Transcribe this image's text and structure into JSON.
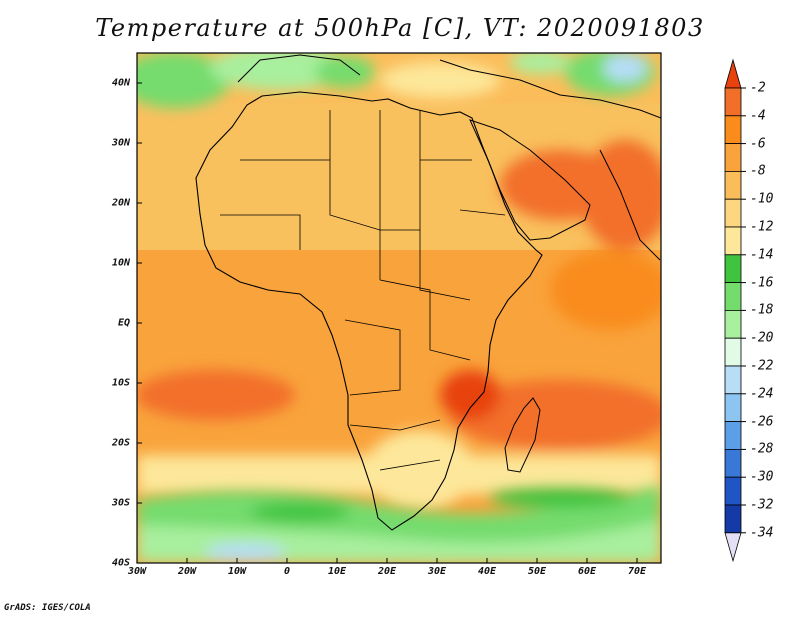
{
  "title": "Temperature at 500hPa [C], VT: 2020091803",
  "credit": "GrADS: IGES/COLA",
  "map": {
    "lat_labels": [
      "40N",
      "30N",
      "20N",
      "10N",
      "EQ",
      "10S",
      "20S",
      "30S",
      "40S"
    ],
    "lon_labels": [
      "30W",
      "20W",
      "10W",
      "0",
      "10E",
      "20E",
      "30E",
      "40E",
      "50E",
      "60E",
      "70E"
    ],
    "fill_colors": {
      "ocean_south": "#f9a33c",
      "sahara": "#f9c05e",
      "arabia_hot": "#f26f2a",
      "sw_indian_hot": "#f26f2a",
      "south_cool_band": "#5fd65f",
      "far_south": "#a8ef9e",
      "northern_band": "#a8ef9e",
      "pale_band": "#fde79a"
    }
  },
  "colorbar": {
    "labels": [
      "-2",
      "-4",
      "-6",
      "-8",
      "-10",
      "-12",
      "-14",
      "-16",
      "-18",
      "-20",
      "-22",
      "-24",
      "-26",
      "-28",
      "-30",
      "-32",
      "-34"
    ],
    "colors": [
      "#e8420f",
      "#f26f2a",
      "#f98c1a",
      "#f9a33c",
      "#fbbd5a",
      "#fdd680",
      "#fde79a",
      "#3fc43f",
      "#74dc6d",
      "#a8ef9e",
      "#e1fbe7",
      "#b7ddf7",
      "#8cc4f2",
      "#5a9fe8",
      "#3a78d8",
      "#2154c4",
      "#133aa6",
      "#08147a"
    ]
  }
}
